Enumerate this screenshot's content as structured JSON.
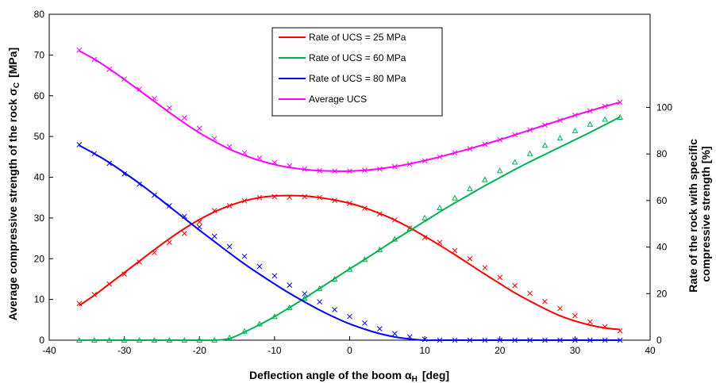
{
  "chart_data": {
    "type": "line",
    "xlabel": "Deflection angle of the boom  α",
    "xlabel_sub": "H",
    "xlabel_unit": "[deg]",
    "ylabel": "Average compressive strength of the rock  σ",
    "ylabel_sub": "C",
    "ylabel_unit": "[MPa]",
    "y2label_line1": "Rate of the rock with specific",
    "y2label_line2": "compressive strength  [%]",
    "xlim": [
      -40,
      40
    ],
    "ylim": [
      0,
      80
    ],
    "y2lim": [
      0,
      140
    ],
    "xticks": [
      -40,
      -30,
      -20,
      -10,
      0,
      10,
      20,
      30,
      40
    ],
    "yticks": [
      0,
      10,
      20,
      30,
      40,
      50,
      60,
      70,
      80
    ],
    "y2ticks": [
      0,
      20,
      40,
      60,
      80,
      100
    ],
    "grid": false,
    "legend_position": "top-center",
    "x": [
      -36,
      -34,
      -32,
      -30,
      -28,
      -26,
      -24,
      -22,
      -20,
      -18,
      -16,
      -14,
      -12,
      -10,
      -8,
      -6,
      -4,
      -2,
      0,
      2,
      4,
      6,
      8,
      10,
      12,
      14,
      16,
      18,
      20,
      22,
      24,
      26,
      28,
      30,
      32,
      34,
      36
    ],
    "series": [
      {
        "name": "Rate of UCS = 25 MPa",
        "color": "#ff0000",
        "axis": "left",
        "marker": "x",
        "values": [
          8.5,
          11.0,
          13.8,
          16.6,
          19.4,
          22.2,
          24.9,
          27.4,
          29.6,
          31.5,
          33.0,
          34.2,
          35.0,
          35.4,
          35.5,
          35.4,
          35.0,
          34.4,
          33.6,
          32.5,
          31.1,
          29.5,
          27.6,
          25.5,
          23.3,
          21.0,
          18.6,
          16.2,
          13.9,
          11.6,
          9.6,
          7.7,
          6.0,
          4.7,
          3.7,
          3.0,
          2.6
        ],
        "markers": [
          9.0,
          11.2,
          13.8,
          16.2,
          19.2,
          21.5,
          24.0,
          26.2,
          29.0,
          31.8,
          33.0,
          34.2,
          35.0,
          35.2,
          35.1,
          35.2,
          35.0,
          34.3,
          33.6,
          32.4,
          31.0,
          29.5,
          27.5,
          25.2,
          24.0,
          22.0,
          20.0,
          17.8,
          15.4,
          13.4,
          11.5,
          9.5,
          7.8,
          6.0,
          4.5,
          3.3,
          2.3
        ]
      },
      {
        "name": "Rate of UCS = 60 MPa",
        "color": "#00b050",
        "axis": "left",
        "marker": "triangle",
        "values": [
          0,
          0,
          0,
          0,
          0,
          0,
          0,
          0,
          0,
          0,
          0.4,
          2.0,
          3.8,
          5.8,
          8.0,
          10.3,
          12.7,
          15.1,
          17.5,
          19.8,
          22.2,
          24.6,
          26.9,
          29.2,
          31.5,
          33.7,
          35.8,
          37.9,
          39.9,
          41.9,
          43.8,
          45.6,
          47.4,
          49.2,
          51.0,
          52.9,
          54.8
        ],
        "markers": [
          0,
          0,
          0,
          0,
          0,
          0,
          0,
          0,
          0,
          0,
          0.6,
          2.2,
          4.0,
          5.8,
          8.0,
          10.3,
          12.7,
          15.0,
          17.4,
          19.8,
          22.2,
          24.8,
          27.4,
          30.0,
          32.5,
          34.9,
          37.2,
          39.4,
          41.6,
          43.7,
          45.8,
          47.8,
          49.6,
          51.4,
          53.0,
          54.2,
          54.7
        ]
      },
      {
        "name": "Rate of UCS = 80 MPa",
        "color": "#0000ff",
        "axis": "left",
        "marker": "x",
        "values": [
          47.8,
          45.8,
          43.6,
          41.1,
          38.5,
          35.7,
          32.8,
          29.9,
          27.0,
          24.2,
          21.4,
          18.7,
          16.2,
          13.8,
          11.5,
          9.4,
          7.4,
          5.6,
          4.0,
          2.7,
          1.6,
          0.8,
          0.3,
          0,
          0,
          0,
          0,
          0,
          0,
          0,
          0,
          0,
          0,
          0,
          0,
          0,
          0
        ],
        "markers": [
          48.0,
          45.8,
          43.4,
          40.8,
          38.3,
          35.6,
          33.0,
          30.4,
          27.8,
          25.5,
          23.0,
          20.6,
          18.1,
          15.8,
          13.5,
          11.4,
          9.4,
          7.5,
          5.8,
          4.2,
          2.8,
          1.6,
          0.8,
          0.2,
          0,
          0,
          0,
          0,
          0,
          0,
          0,
          0,
          0,
          0,
          0,
          0,
          0
        ]
      },
      {
        "name": "Average UCS",
        "color": "#ff00ff",
        "axis": "left",
        "marker": "x",
        "values": [
          71.0,
          69.0,
          66.6,
          64.0,
          61.3,
          58.6,
          55.9,
          53.3,
          50.9,
          48.8,
          46.9,
          45.4,
          44.1,
          43.1,
          42.4,
          41.9,
          41.6,
          41.5,
          41.5,
          41.7,
          42.1,
          42.6,
          43.3,
          44.1,
          45.0,
          46.0,
          47.0,
          48.1,
          49.2,
          50.4,
          51.6,
          52.8,
          54.0,
          55.2,
          56.3,
          57.4,
          58.4
        ],
        "markers": [
          71.2,
          68.9,
          66.5,
          64.1,
          61.6,
          59.3,
          57.0,
          54.6,
          52.0,
          49.5,
          47.5,
          46.0,
          44.7,
          43.6,
          42.8,
          42.0,
          41.6,
          41.5,
          41.5,
          41.7,
          42.0,
          42.6,
          43.2,
          44.0,
          45.0,
          46.0,
          47.0,
          48.1,
          49.2,
          50.4,
          51.6,
          52.8,
          54.0,
          55.2,
          56.3,
          57.4,
          58.4
        ]
      }
    ]
  }
}
